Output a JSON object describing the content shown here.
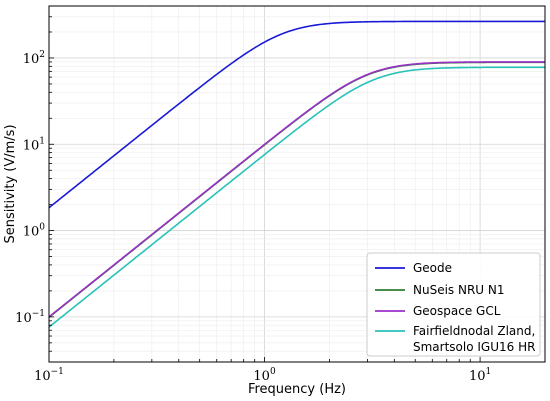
{
  "chart_data": {
    "type": "line",
    "xlabel": "Frequency (Hz)",
    "ylabel": "Sensitivity (V/m/s)",
    "xscale": "log",
    "yscale": "log",
    "xlim": [
      0.1,
      20
    ],
    "ylim": [
      0.03,
      400
    ],
    "grid": true,
    "legend_position": "bottom-right",
    "x_ticks": [
      {
        "value": 0.1,
        "base": "10",
        "exp": "−1"
      },
      {
        "value": 1,
        "base": "10",
        "exp": "0"
      },
      {
        "value": 10,
        "base": "10",
        "exp": "1"
      }
    ],
    "y_ticks": [
      {
        "value": 0.1,
        "base": "10",
        "exp": "−1"
      },
      {
        "value": 1,
        "base": "10",
        "exp": "0"
      },
      {
        "value": 10,
        "base": "10",
        "exp": "1"
      },
      {
        "value": 100,
        "base": "10",
        "exp": "2"
      }
    ],
    "series": [
      {
        "name": "Geode",
        "color": "#1a1ad6",
        "f0": 1.2,
        "plateau": 265,
        "order": 2,
        "damping": 0.7
      },
      {
        "name": "NuSeis NRU N1",
        "color": "#2e7d32",
        "f0": 3.0,
        "plateau": 89,
        "order": 2,
        "damping": 0.7
      },
      {
        "name": "Geospace GCL",
        "color": "#9b30c8",
        "f0": 3.0,
        "plateau": 90,
        "order": 2,
        "damping": 0.7
      },
      {
        "name": "Fairfieldnodal Zland,\nSmartsolo IGU16 HR",
        "color": "#27c2b8",
        "f0": 3.2,
        "plateau": 78,
        "order": 2,
        "damping": 0.7
      }
    ]
  }
}
